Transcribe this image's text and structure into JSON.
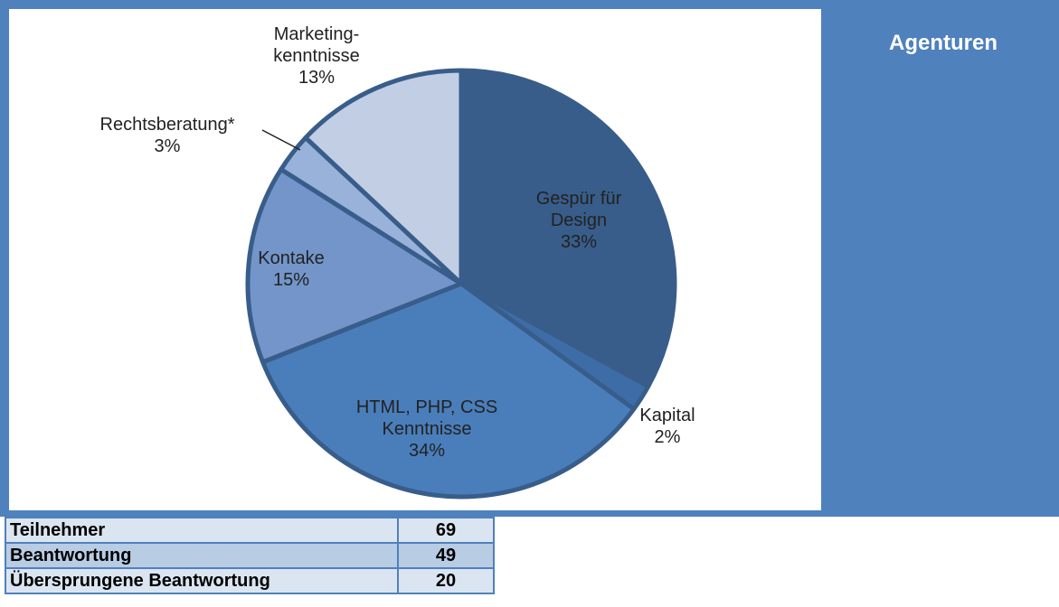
{
  "chart_data": {
    "type": "pie",
    "categories": [
      "Gespür für Design",
      "Kapital",
      "HTML, PHP, CSS Kenntnisse",
      "Kontake",
      "Rechtsberatung*",
      "Marketing-kenntnisse"
    ],
    "values": [
      33,
      2,
      34,
      15,
      3,
      13
    ],
    "value_labels": [
      "33%",
      "2%",
      "34%",
      "15%",
      "3%",
      "13%"
    ],
    "colors": [
      "#385d8a",
      "#3e6ca6",
      "#4a7ebb",
      "#7395c9",
      "#98b2d9",
      "#c2cee4"
    ]
  },
  "side_title": "Agenturen",
  "table": {
    "rows": [
      [
        "Teilnehmer",
        "69"
      ],
      [
        "Beantwortung",
        "49"
      ],
      [
        "Übersprungene Beantwortung",
        "20"
      ]
    ]
  }
}
